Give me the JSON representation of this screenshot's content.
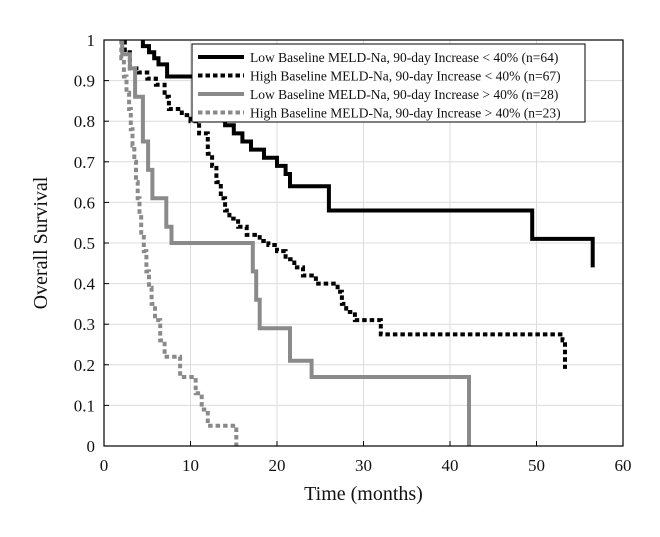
{
  "chart_data": {
    "type": "line",
    "subtype": "kaplan-meier-step",
    "xlabel": "Time (months)",
    "ylabel": "Overall Survival",
    "xlim": [
      0,
      60
    ],
    "ylim": [
      0,
      1
    ],
    "xticks": [
      0,
      10,
      20,
      30,
      40,
      50,
      60
    ],
    "yticks": [
      0,
      0.1,
      0.2,
      0.3,
      0.4,
      0.5,
      0.6,
      0.7,
      0.8,
      0.9,
      1
    ],
    "ytick_labels": [
      "0",
      "0.1",
      "0.2",
      "0.3",
      "0.4",
      "0.5",
      "0.6",
      "0.7",
      "0.8",
      "0.9",
      "1"
    ],
    "grid": true,
    "legend_position": "top-right",
    "series": [
      {
        "name": "Low Baseline MELD-Na, 90-day Increase < 40% (n=64)",
        "color": "#000000",
        "dash": "solid",
        "points": [
          [
            4.5,
            1.0
          ],
          [
            4.5,
            0.985
          ],
          [
            5.2,
            0.985
          ],
          [
            5.2,
            0.97
          ],
          [
            5.8,
            0.97
          ],
          [
            5.8,
            0.955
          ],
          [
            6.3,
            0.955
          ],
          [
            6.3,
            0.94
          ],
          [
            7.3,
            0.94
          ],
          [
            7.3,
            0.91
          ],
          [
            10.5,
            0.91
          ],
          [
            10.5,
            0.89
          ],
          [
            11.2,
            0.89
          ],
          [
            11.2,
            0.86
          ],
          [
            12,
            0.86
          ],
          [
            12,
            0.83
          ],
          [
            13,
            0.83
          ],
          [
            13,
            0.81
          ],
          [
            14,
            0.81
          ],
          [
            14,
            0.79
          ],
          [
            15,
            0.79
          ],
          [
            15,
            0.77
          ],
          [
            16,
            0.77
          ],
          [
            16,
            0.75
          ],
          [
            17,
            0.75
          ],
          [
            17,
            0.73
          ],
          [
            18.5,
            0.73
          ],
          [
            18.5,
            0.71
          ],
          [
            20,
            0.71
          ],
          [
            20,
            0.69
          ],
          [
            21,
            0.69
          ],
          [
            21,
            0.67
          ],
          [
            21.5,
            0.67
          ],
          [
            21.5,
            0.64
          ],
          [
            26,
            0.64
          ],
          [
            26,
            0.58
          ],
          [
            49.5,
            0.58
          ],
          [
            49.5,
            0.51
          ],
          [
            56.5,
            0.51
          ],
          [
            56.5,
            0.44
          ]
        ]
      },
      {
        "name": "High Baseline MELD-Na, 90-day Increase < 40% (n=67)",
        "color": "#000000",
        "dash": "dotted",
        "points": [
          [
            2.4,
            1.0
          ],
          [
            2.4,
            0.97
          ],
          [
            3,
            0.97
          ],
          [
            3,
            0.93
          ],
          [
            4,
            0.93
          ],
          [
            4,
            0.92
          ],
          [
            5,
            0.92
          ],
          [
            5,
            0.905
          ],
          [
            6,
            0.905
          ],
          [
            6,
            0.89
          ],
          [
            7,
            0.89
          ],
          [
            7,
            0.86
          ],
          [
            7.5,
            0.86
          ],
          [
            7.5,
            0.83
          ],
          [
            9,
            0.83
          ],
          [
            9,
            0.815
          ],
          [
            10,
            0.815
          ],
          [
            10,
            0.8
          ],
          [
            11,
            0.8
          ],
          [
            11,
            0.77
          ],
          [
            12,
            0.77
          ],
          [
            12,
            0.72
          ],
          [
            12.5,
            0.72
          ],
          [
            12.5,
            0.69
          ],
          [
            13,
            0.69
          ],
          [
            13,
            0.65
          ],
          [
            13.5,
            0.65
          ],
          [
            13.5,
            0.61
          ],
          [
            14,
            0.61
          ],
          [
            14,
            0.58
          ],
          [
            14.5,
            0.58
          ],
          [
            14.5,
            0.56
          ],
          [
            15.5,
            0.56
          ],
          [
            15.5,
            0.54
          ],
          [
            16.5,
            0.54
          ],
          [
            16.5,
            0.52
          ],
          [
            18,
            0.52
          ],
          [
            18,
            0.505
          ],
          [
            19,
            0.505
          ],
          [
            19,
            0.495
          ],
          [
            20,
            0.495
          ],
          [
            20,
            0.48
          ],
          [
            21,
            0.48
          ],
          [
            21,
            0.46
          ],
          [
            22,
            0.46
          ],
          [
            22,
            0.44
          ],
          [
            23,
            0.44
          ],
          [
            23,
            0.42
          ],
          [
            24.5,
            0.42
          ],
          [
            24.5,
            0.4
          ],
          [
            27,
            0.4
          ],
          [
            27,
            0.38
          ],
          [
            27.5,
            0.38
          ],
          [
            27.5,
            0.35
          ],
          [
            28,
            0.35
          ],
          [
            28,
            0.33
          ],
          [
            29,
            0.33
          ],
          [
            29,
            0.31
          ],
          [
            32,
            0.31
          ],
          [
            32,
            0.275
          ],
          [
            53,
            0.275
          ],
          [
            53,
            0.26
          ],
          [
            53.3,
            0.26
          ],
          [
            53.3,
            0.19
          ]
        ]
      },
      {
        "name": "Low Baseline MELD-Na, 90-day Increase > 40% (n=28)",
        "color": "#8a8a8a",
        "dash": "solid",
        "points": [
          [
            2.1,
            1.0
          ],
          [
            2.1,
            0.965
          ],
          [
            3,
            0.965
          ],
          [
            3,
            0.93
          ],
          [
            3.6,
            0.93
          ],
          [
            3.6,
            0.86
          ],
          [
            4.5,
            0.86
          ],
          [
            4.5,
            0.75
          ],
          [
            5.1,
            0.75
          ],
          [
            5.1,
            0.68
          ],
          [
            5.6,
            0.68
          ],
          [
            5.6,
            0.61
          ],
          [
            7.2,
            0.61
          ],
          [
            7.2,
            0.54
          ],
          [
            7.8,
            0.54
          ],
          [
            7.8,
            0.5
          ],
          [
            17.2,
            0.5
          ],
          [
            17.2,
            0.43
          ],
          [
            17.6,
            0.43
          ],
          [
            17.6,
            0.36
          ],
          [
            18,
            0.36
          ],
          [
            18,
            0.29
          ],
          [
            21.5,
            0.29
          ],
          [
            21.5,
            0.21
          ],
          [
            24,
            0.21
          ],
          [
            24,
            0.17
          ],
          [
            42.2,
            0.17
          ],
          [
            42.2,
            0.0
          ]
        ]
      },
      {
        "name": "High Baseline MELD-Na, 90-day Increase > 40% (n=23)",
        "color": "#8a8a8a",
        "dash": "dotted",
        "points": [
          [
            2.0,
            1.0
          ],
          [
            2.0,
            0.955
          ],
          [
            2.3,
            0.955
          ],
          [
            2.3,
            0.91
          ],
          [
            2.6,
            0.91
          ],
          [
            2.6,
            0.87
          ],
          [
            2.9,
            0.87
          ],
          [
            2.9,
            0.83
          ],
          [
            3.1,
            0.83
          ],
          [
            3.1,
            0.78
          ],
          [
            3.3,
            0.78
          ],
          [
            3.3,
            0.74
          ],
          [
            3.5,
            0.74
          ],
          [
            3.5,
            0.7
          ],
          [
            3.7,
            0.7
          ],
          [
            3.7,
            0.65
          ],
          [
            3.9,
            0.65
          ],
          [
            3.9,
            0.61
          ],
          [
            4.1,
            0.61
          ],
          [
            4.1,
            0.57
          ],
          [
            4.3,
            0.57
          ],
          [
            4.3,
            0.52
          ],
          [
            4.6,
            0.52
          ],
          [
            4.6,
            0.48
          ],
          [
            4.9,
            0.48
          ],
          [
            4.9,
            0.43
          ],
          [
            5.2,
            0.43
          ],
          [
            5.2,
            0.39
          ],
          [
            5.5,
            0.39
          ],
          [
            5.5,
            0.35
          ],
          [
            5.9,
            0.35
          ],
          [
            5.9,
            0.31
          ],
          [
            6.5,
            0.31
          ],
          [
            6.5,
            0.26
          ],
          [
            7.0,
            0.26
          ],
          [
            7.0,
            0.22
          ],
          [
            8.8,
            0.22
          ],
          [
            8.8,
            0.17
          ],
          [
            10.6,
            0.17
          ],
          [
            10.6,
            0.13
          ],
          [
            11.3,
            0.13
          ],
          [
            11.3,
            0.09
          ],
          [
            12.0,
            0.09
          ],
          [
            12.0,
            0.05
          ],
          [
            15.3,
            0.05
          ],
          [
            15.3,
            0.0
          ]
        ]
      }
    ]
  }
}
